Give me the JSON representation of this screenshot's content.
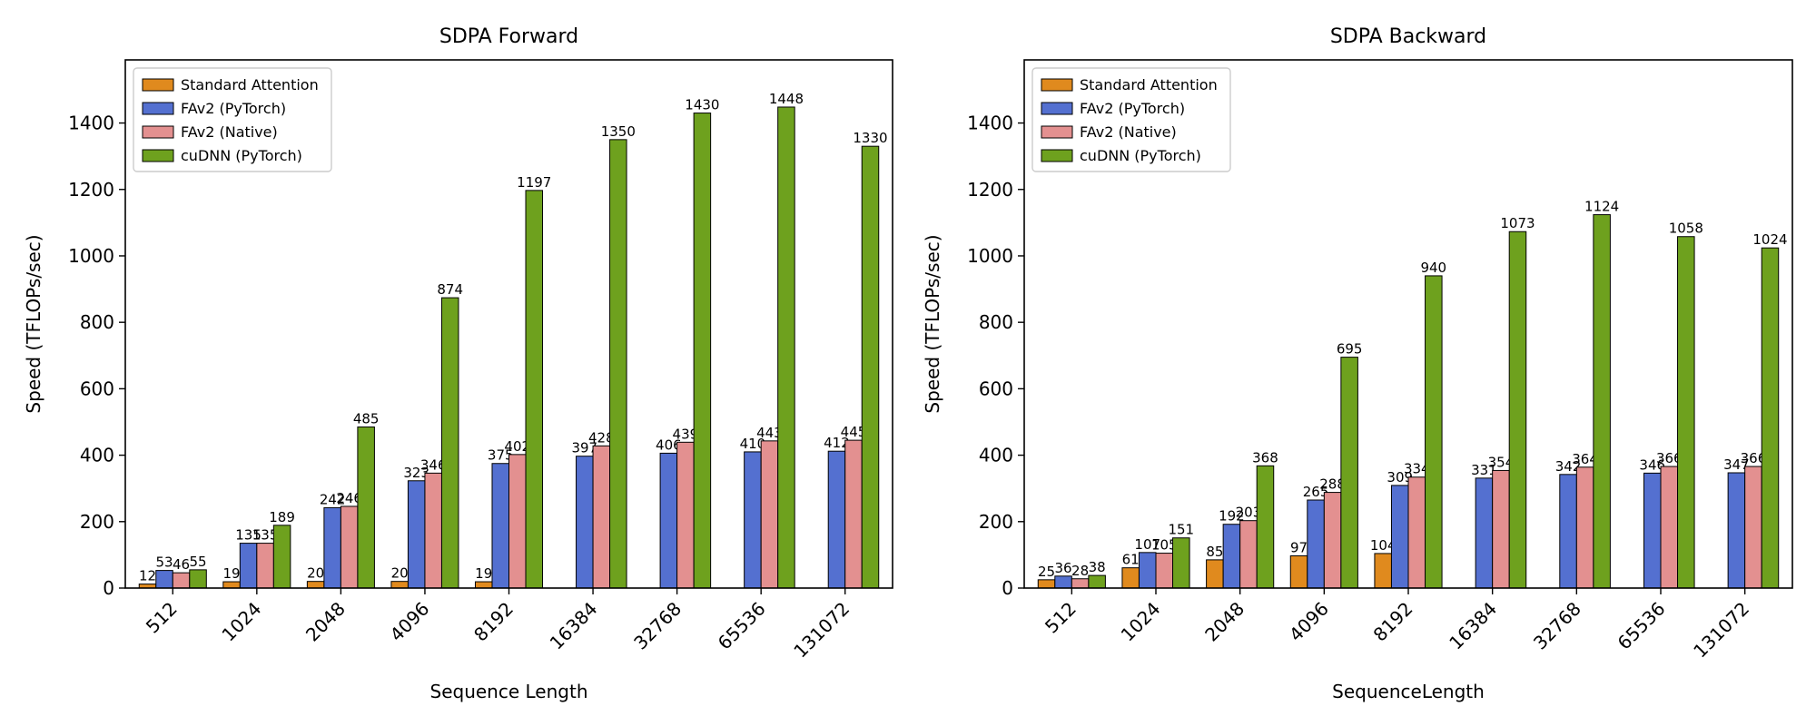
{
  "chart_data": [
    {
      "type": "bar",
      "title": "SDPA Forward",
      "xlabel": "Sequence Length",
      "ylabel": "Speed (TFLOPs/sec)",
      "categories": [
        "512",
        "1024",
        "2048",
        "4096",
        "8192",
        "16384",
        "32768",
        "65536",
        "131072"
      ],
      "ylim": [
        0,
        1590
      ],
      "yticks": [
        0,
        200,
        400,
        600,
        800,
        1000,
        1200,
        1400
      ],
      "legend_position": "top-left",
      "series": [
        {
          "name": "Standard Attention",
          "color": "#e08a1e",
          "values": [
            12,
            19,
            20,
            20,
            19,
            null,
            null,
            null,
            null
          ]
        },
        {
          "name": "FAv2 (PyTorch)",
          "color": "#5470d0",
          "values": [
            53,
            135,
            242,
            323,
            375,
            397,
            406,
            410,
            412
          ]
        },
        {
          "name": "FAv2 (Native)",
          "color": "#e39090",
          "values": [
            46,
            135,
            246,
            346,
            402,
            428,
            439,
            443,
            445
          ]
        },
        {
          "name": "cuDNN (PyTorch)",
          "color": "#6ea11e",
          "values": [
            55,
            189,
            485,
            874,
            1197,
            1350,
            1430,
            1448,
            1330
          ]
        }
      ]
    },
    {
      "type": "bar",
      "title": "SDPA Backward",
      "xlabel": "SequenceLength",
      "ylabel": "Speed (TFLOPs/sec)",
      "categories": [
        "512",
        "1024",
        "2048",
        "4096",
        "8192",
        "16384",
        "32768",
        "65536",
        "131072"
      ],
      "ylim": [
        0,
        1590
      ],
      "yticks": [
        0,
        200,
        400,
        600,
        800,
        1000,
        1200,
        1400
      ],
      "legend_position": "top-left",
      "series": [
        {
          "name": "Standard Attention",
          "color": "#e08a1e",
          "values": [
            25,
            61,
            85,
            97,
            104,
            null,
            null,
            null,
            null
          ]
        },
        {
          "name": "FAv2 (PyTorch)",
          "color": "#5470d0",
          "values": [
            36,
            107,
            192,
            265,
            309,
            331,
            342,
            346,
            347
          ]
        },
        {
          "name": "FAv2 (Native)",
          "color": "#e39090",
          "values": [
            28,
            105,
            203,
            288,
            334,
            354,
            364,
            366,
            366
          ]
        },
        {
          "name": "cuDNN (PyTorch)",
          "color": "#6ea11e",
          "values": [
            38,
            151,
            368,
            695,
            940,
            1073,
            1124,
            1058,
            1024
          ]
        }
      ]
    }
  ]
}
